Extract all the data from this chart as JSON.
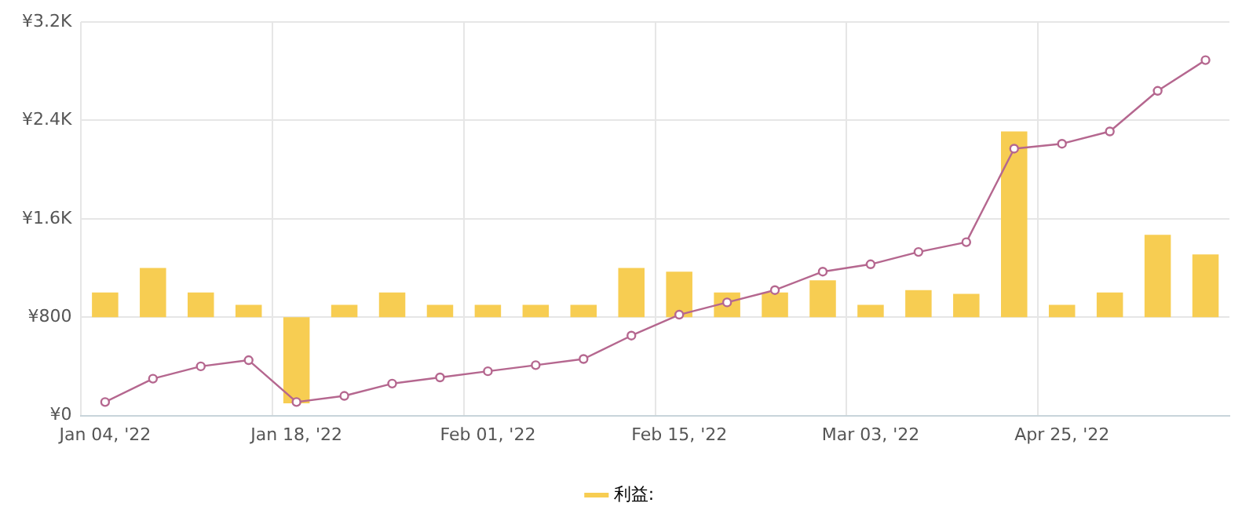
{
  "chart_data": {
    "type": "bar",
    "categories": [
      "Jan 04, '22",
      null,
      null,
      null,
      "Jan 18, '22",
      null,
      null,
      null,
      "Feb 01, '22",
      null,
      null,
      null,
      "Feb 15, '22",
      null,
      null,
      null,
      "Mar 03, '22",
      null,
      null,
      null,
      "Apr 25, '22",
      null,
      null,
      null
    ],
    "series": [
      {
        "name": "利益:",
        "color": "#f7cd52",
        "base": [
          800,
          800,
          800,
          800,
          800,
          800,
          800,
          800,
          800,
          800,
          800,
          800,
          800,
          800,
          800,
          800,
          800,
          800,
          800,
          800,
          800,
          800,
          800,
          800
        ],
        "values": [
          200,
          400,
          200,
          100,
          -700,
          100,
          200,
          100,
          100,
          100,
          100,
          400,
          370,
          200,
          200,
          300,
          100,
          220,
          190,
          1510,
          100,
          200,
          670,
          510
        ]
      },
      {
        "type": "line",
        "color": "#b5678f",
        "marker": "circle",
        "values": [
          110,
          300,
          400,
          450,
          110,
          160,
          260,
          310,
          360,
          410,
          460,
          650,
          820,
          920,
          1020,
          1170,
          1230,
          1330,
          1410,
          2170,
          2210,
          2310,
          2640,
          2890
        ]
      }
    ],
    "ylim": [
      0,
      3200
    ],
    "yticks": [
      {
        "value": 0,
        "label": "¥0"
      },
      {
        "value": 800,
        "label": "¥800"
      },
      {
        "value": 1600,
        "label": "¥1.6K"
      },
      {
        "value": 2400,
        "label": "¥2.4K"
      },
      {
        "value": 3200,
        "label": "¥3.2K"
      }
    ],
    "grid": true,
    "legend": "bottom"
  }
}
